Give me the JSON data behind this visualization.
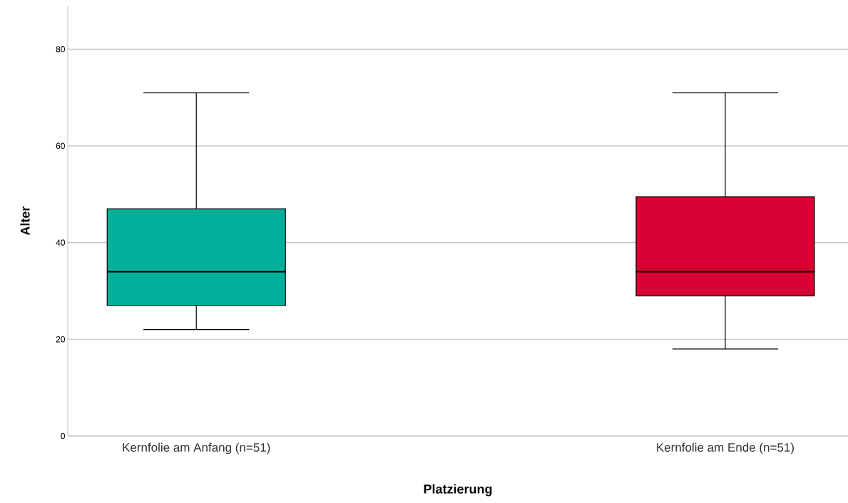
{
  "chart_data": {
    "type": "box",
    "xlabel": "Platzierung",
    "ylabel": "Alter",
    "categories": [
      "Kernfolie am Anfang (n=51)",
      "Kernfolie am Ende (n=51)"
    ],
    "boxes": [
      {
        "low": 22,
        "q1": 27,
        "median": 34,
        "q3": 47,
        "high": 71
      },
      {
        "low": 18,
        "q1": 29,
        "median": 34,
        "q3": 49.5,
        "high": 71
      }
    ],
    "colors": [
      "#00b09b",
      "#d60032"
    ],
    "ylim": [
      0,
      89
    ],
    "yticks": [
      0,
      20,
      40,
      60,
      80
    ],
    "grid": "y"
  }
}
